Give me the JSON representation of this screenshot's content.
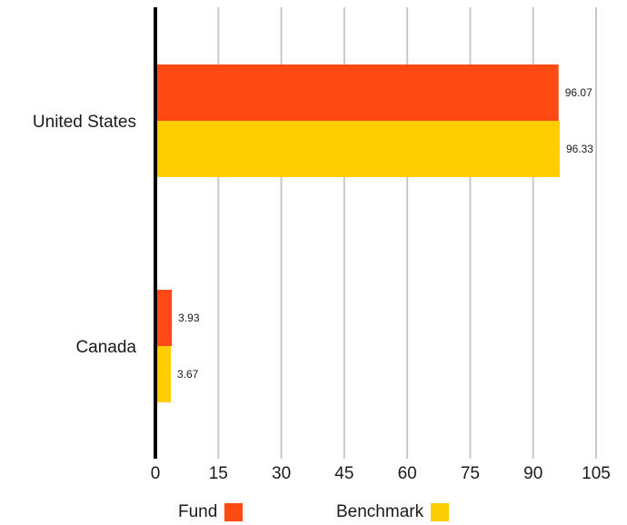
{
  "chart_data": {
    "type": "bar",
    "orientation": "horizontal",
    "categories": [
      "United States",
      "Canada"
    ],
    "series": [
      {
        "name": "Fund",
        "values": [
          96.07,
          3.93
        ],
        "color": "#FF4A14"
      },
      {
        "name": "Benchmark",
        "values": [
          96.33,
          3.67
        ],
        "color": "#FFCD00"
      }
    ],
    "xlim": [
      0,
      105
    ],
    "x_ticks": [
      "0",
      "15",
      "30",
      "45",
      "60",
      "75",
      "90",
      "105"
    ],
    "value_labels": [
      [
        "96.07",
        "3.93"
      ],
      [
        "96.33",
        "3.67"
      ]
    ],
    "grid": "vertical",
    "legend_position": "bottom"
  },
  "legend": {
    "fund_label": "Fund",
    "benchmark_label": "Benchmark"
  }
}
